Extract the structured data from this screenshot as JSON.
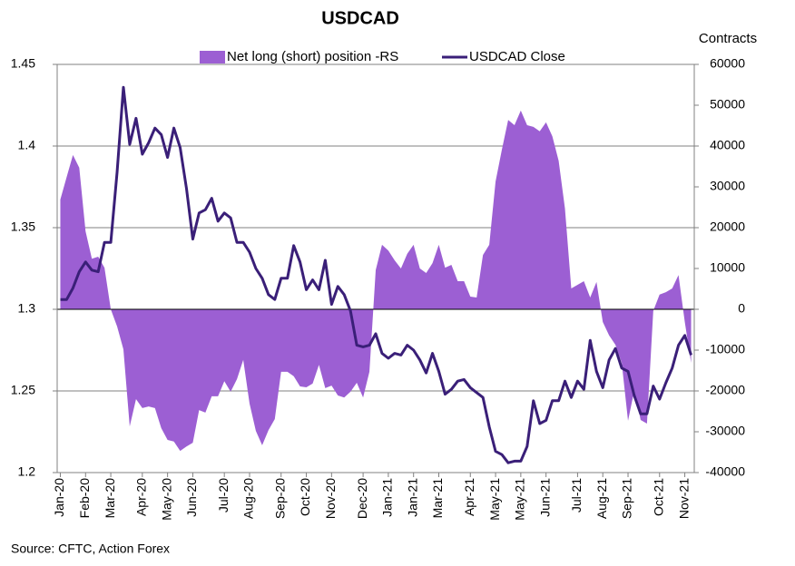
{
  "chart_data": {
    "type": "area-line",
    "title": "USDCAD",
    "y2_label": "Contracts",
    "source": "Source: CFTC, Action Forex",
    "categories": [
      "Jan-20",
      null,
      null,
      null,
      "Feb-20",
      null,
      null,
      null,
      "Mar-20",
      null,
      null,
      null,
      null,
      "Apr-20",
      null,
      null,
      null,
      "May-20",
      null,
      null,
      null,
      "Jun-20",
      null,
      null,
      null,
      null,
      "Jul-20",
      null,
      null,
      null,
      "Aug-20",
      null,
      null,
      null,
      null,
      "Sep-20",
      null,
      null,
      null,
      "Oct-20",
      null,
      null,
      null,
      "Nov-20",
      null,
      null,
      null,
      null,
      "Dec-20",
      null,
      null,
      null,
      "Jan-21",
      null,
      null,
      null,
      "Jan-21",
      null,
      null,
      null,
      "Mar-21",
      null,
      null,
      null,
      null,
      "Apr-21",
      null,
      null,
      null,
      "May-21",
      null,
      null,
      null,
      "May-21",
      null,
      null,
      null,
      "Jun-21",
      null,
      null,
      null,
      null,
      "Jul-21",
      null,
      null,
      null,
      "Aug-21",
      null,
      null,
      null,
      "Sep-21",
      null,
      null,
      null,
      null,
      "Oct-21",
      null,
      null,
      null,
      "Nov-21",
      null
    ],
    "series": [
      {
        "name": "Net long (short) position -RS",
        "color": "#9c5fd3",
        "axis": "y2",
        "kind": "area",
        "values": [
          26900,
          32400,
          37800,
          34700,
          19100,
          12400,
          12900,
          10200,
          0,
          -4200,
          -9800,
          -28700,
          -22000,
          -24200,
          -23800,
          -24200,
          -29100,
          -32000,
          -32400,
          -34700,
          -33600,
          -32700,
          -24700,
          -25300,
          -21300,
          -21300,
          -17600,
          -20200,
          -17100,
          -12400,
          -23100,
          -29800,
          -33300,
          -29600,
          -26900,
          -15300,
          -15300,
          -16400,
          -18900,
          -19100,
          -18200,
          -13600,
          -19300,
          -18700,
          -21100,
          -21600,
          -20200,
          -18000,
          -21600,
          -15300,
          9600,
          15800,
          14400,
          12000,
          10000,
          13600,
          15800,
          10000,
          8900,
          11300,
          15800,
          10200,
          10900,
          6900,
          6900,
          3100,
          2900,
          13300,
          15800,
          31300,
          39100,
          46400,
          45100,
          48700,
          45100,
          44700,
          43600,
          45800,
          42400,
          36400,
          24700,
          5100,
          6000,
          6900,
          2900,
          6700,
          -3100,
          -6400,
          -8700,
          -13100,
          -27300,
          -19800,
          -27100,
          -28000,
          -400,
          3600,
          4200,
          5100,
          8400,
          -3100,
          -13100
        ]
      },
      {
        "name": "USDCAD Close",
        "color": "#3a1f78",
        "kind": "line",
        "values": [
          1.306,
          1.306,
          1.313,
          1.323,
          1.329,
          1.324,
          1.323,
          1.341,
          1.341,
          1.384,
          1.436,
          1.401,
          1.417,
          1.395,
          1.402,
          1.411,
          1.407,
          1.393,
          1.411,
          1.399,
          1.374,
          1.343,
          1.359,
          1.361,
          1.368,
          1.354,
          1.359,
          1.356,
          1.341,
          1.341,
          1.335,
          1.325,
          1.319,
          1.309,
          1.306,
          1.319,
          1.319,
          1.339,
          1.329,
          1.312,
          1.318,
          1.312,
          1.33,
          1.303,
          1.314,
          1.309,
          1.299,
          1.278,
          1.277,
          1.278,
          1.285,
          1.273,
          1.27,
          1.273,
          1.272,
          1.278,
          1.275,
          1.269,
          1.261,
          1.273,
          1.262,
          1.248,
          1.251,
          1.256,
          1.257,
          1.252,
          1.249,
          1.246,
          1.228,
          1.213,
          1.211,
          1.206,
          1.207,
          1.207,
          1.216,
          1.244,
          1.23,
          1.232,
          1.244,
          1.244,
          1.256,
          1.246,
          1.256,
          1.251,
          1.281,
          1.262,
          1.252,
          1.269,
          1.276,
          1.264,
          1.262,
          1.247,
          1.236,
          1.236,
          1.253,
          1.245,
          1.255,
          1.264,
          1.278,
          1.284,
          1.272
        ]
      }
    ],
    "ylim": [
      1.2,
      1.45
    ],
    "yticks": [
      1.2,
      1.25,
      1.3,
      1.35,
      1.4,
      1.45
    ],
    "y2lim": [
      -40000,
      60000
    ],
    "y2ticks": [
      -40000,
      -30000,
      -20000,
      -10000,
      0,
      10000,
      20000,
      30000,
      40000,
      50000,
      60000
    ],
    "grid": true,
    "legend": "top"
  }
}
